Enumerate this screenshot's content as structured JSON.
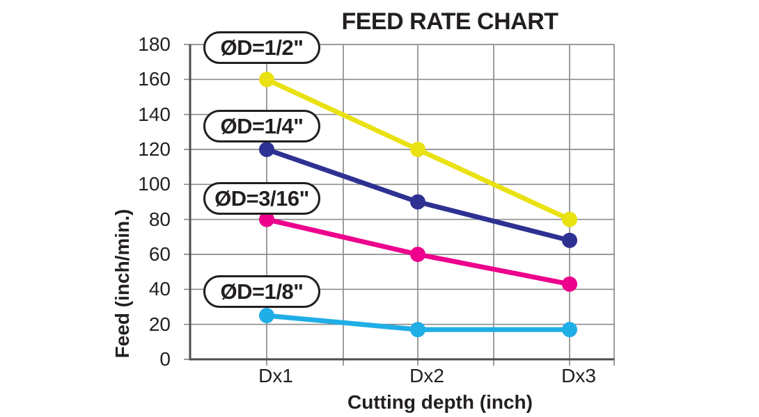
{
  "title": "FEED RATE CHART",
  "chart_data": {
    "type": "line",
    "title": "FEED RATE CHART",
    "xlabel": "Cutting depth (inch)",
    "ylabel": "Feed (inch/min.)",
    "categories": [
      "Dx1",
      "Dx2",
      "Dx3"
    ],
    "ylim": [
      0,
      180
    ],
    "y_tick_step": 20,
    "y_ticks": [
      0,
      20,
      40,
      60,
      80,
      100,
      120,
      140,
      160,
      180
    ],
    "grid": "on",
    "minor_x_gridlines_between_categories": true,
    "legend": "inline rounded callout labels stacked along left side, one per series",
    "series": [
      {
        "name": "ØD=1/2\"",
        "color": "#e9e112",
        "values": [
          160,
          120,
          80
        ]
      },
      {
        "name": "ØD=1/4\"",
        "color": "#2e3192",
        "values": [
          120,
          90,
          68
        ]
      },
      {
        "name": "ØD=3/16\"",
        "color": "#ec008c",
        "values": [
          80,
          60,
          43
        ]
      },
      {
        "name": "ØD=1/8\"",
        "color": "#20aee6",
        "values": [
          25,
          17,
          17
        ]
      }
    ]
  },
  "colors": {
    "background": "#ffffff",
    "grid": "#8c8c8c",
    "axis": "#4d4d4f",
    "text": "#231f20",
    "callout_fill": "#ffffff",
    "callout_border": "#231f20"
  }
}
